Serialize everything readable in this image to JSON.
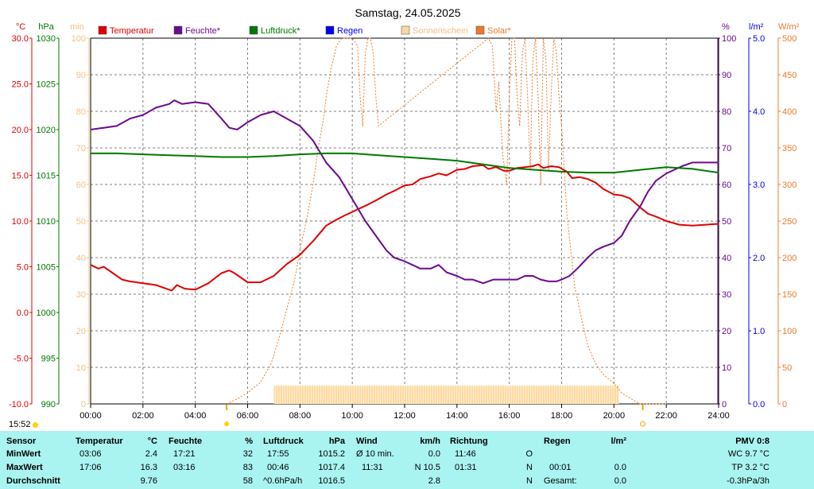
{
  "title": "Samstag, 24.05.2025",
  "colors": {
    "temperature": "#e00000",
    "humidity": "#6b0a8f",
    "pressure": "#007800",
    "rain": "#0000f0",
    "sunshine": "#ffd9a0",
    "solar": "#f07828",
    "grid": "#808080",
    "table_bg": "#a9f4f0"
  },
  "legend": [
    {
      "label": "Temperatur",
      "color": "#e00000",
      "text_color": "#e00000"
    },
    {
      "label": "Feuchte*",
      "color": "#6b0a8f",
      "text_color": "#6b0a8f"
    },
    {
      "label": "Luftdruck*",
      "color": "#007800",
      "text_color": "#007800"
    },
    {
      "label": "Regen",
      "color": "#0000f0",
      "text_color": "#0000f0"
    },
    {
      "label": "Sonnenschein",
      "color": "#ffd9a0",
      "text_color": "#f5c080"
    },
    {
      "label": "Solar*",
      "color": "#f07828",
      "text_color": "#f07828"
    }
  ],
  "axes": {
    "temperature": {
      "unit": "°C",
      "min": -10,
      "max": 30,
      "ticks": [
        "30.0",
        "25.0",
        "20.0",
        "15.0",
        "10.0",
        "5.0",
        "0.0",
        "-5.0",
        "-10.0"
      ]
    },
    "pressure": {
      "unit": "hPa",
      "min": 990,
      "max": 1030,
      "ticks": [
        "1030",
        "1025",
        "1020",
        "1015",
        "1010",
        "1005",
        "1000",
        "995",
        "990"
      ]
    },
    "sunshine": {
      "unit": "min",
      "min": 0,
      "max": 100,
      "ticks": [
        "100",
        "90",
        "80",
        "70",
        "60",
        "50",
        "40",
        "30",
        "20",
        "10",
        "0"
      ]
    },
    "humidity": {
      "unit": "%",
      "min": 0,
      "max": 100,
      "ticks": [
        "100",
        "90",
        "80",
        "70",
        "60",
        "50",
        "40",
        "30",
        "20",
        "10",
        "0"
      ]
    },
    "rain": {
      "unit": "l/m²",
      "min": 0,
      "max": 5,
      "ticks": [
        "5.0",
        "4.0",
        "3.0",
        "2.0",
        "1.0",
        "0.0"
      ]
    },
    "solar": {
      "unit": "W/m²",
      "min": 0,
      "max": 500,
      "ticks": [
        "500",
        "450",
        "400",
        "350",
        "300",
        "250",
        "200",
        "150",
        "100",
        "50",
        "0"
      ]
    },
    "time": {
      "ticks": [
        "00:00",
        "02:00",
        "04:00",
        "06:00",
        "08:00",
        "10:00",
        "12:00",
        "14:00",
        "16:00",
        "18:00",
        "20:00",
        "22:00",
        "24:00"
      ]
    }
  },
  "chart_data": {
    "type": "line",
    "title": "Samstag, 24.05.2025",
    "x_unit": "hours",
    "xlim": [
      0,
      24
    ],
    "grid": true,
    "legend_position": "top",
    "sunrise_hour": 5.2,
    "sunset_hour": 21.1,
    "series": [
      {
        "name": "Temperatur",
        "axis": "temperature",
        "x": [
          0,
          0.3,
          0.5,
          1,
          1.2,
          1.5,
          2,
          2.5,
          3,
          3.1,
          3.3,
          3.6,
          4,
          4.5,
          5,
          5.3,
          5.5,
          6,
          6.5,
          7,
          7.5,
          8,
          8.5,
          9,
          9.3,
          9.7,
          10,
          10.3,
          10.6,
          11,
          11.3,
          11.6,
          12,
          12.3,
          12.6,
          13,
          13.3,
          13.6,
          14,
          14.3,
          14.6,
          15,
          15.2,
          15.5,
          15.8,
          16,
          16.3,
          16.6,
          16.9,
          17.1,
          17.3,
          17.6,
          17.9,
          18.2,
          18.4,
          18.7,
          19,
          19.3,
          19.6,
          20,
          20.3,
          20.6,
          21,
          21.3,
          21.6,
          22,
          22.5,
          23,
          23.5,
          24
        ],
        "y": [
          5.2,
          4.8,
          5.0,
          4.0,
          3.6,
          3.4,
          3.2,
          3.0,
          2.5,
          2.4,
          3.0,
          2.6,
          2.5,
          3.2,
          4.3,
          4.6,
          4.3,
          3.3,
          3.3,
          4.0,
          5.3,
          6.3,
          7.8,
          9.5,
          10.0,
          10.6,
          11.0,
          11.4,
          11.8,
          12.4,
          12.9,
          13.3,
          13.9,
          14.0,
          14.6,
          14.9,
          15.2,
          15.0,
          15.6,
          15.7,
          16.0,
          16.1,
          15.7,
          15.9,
          15.5,
          15.5,
          15.8,
          15.9,
          16.0,
          16.2,
          15.8,
          16.0,
          15.9,
          15.4,
          14.7,
          14.8,
          14.6,
          14.2,
          13.5,
          12.9,
          12.8,
          12.5,
          11.5,
          10.8,
          10.5,
          10.0,
          9.6,
          9.5,
          9.6,
          9.7
        ]
      },
      {
        "name": "Feuchte*",
        "axis": "humidity",
        "x": [
          0,
          0.5,
          1,
          1.5,
          2,
          2.5,
          3,
          3.2,
          3.5,
          4,
          4.5,
          5,
          5.3,
          5.6,
          6,
          6.5,
          7,
          7.5,
          8,
          8.5,
          9,
          9.5,
          10,
          10.5,
          11,
          11.3,
          11.6,
          12,
          12.3,
          12.6,
          13,
          13.3,
          13.6,
          14,
          14.3,
          14.6,
          15,
          15.4,
          15.8,
          16,
          16.3,
          16.6,
          16.9,
          17.2,
          17.5,
          17.8,
          18,
          18.3,
          18.6,
          19,
          19.3,
          19.6,
          20,
          20.3,
          20.6,
          21,
          21.3,
          21.6,
          22,
          22.3,
          22.6,
          23,
          23.5,
          24
        ],
        "y": [
          75,
          75.5,
          76,
          78,
          79,
          81,
          82,
          83,
          82,
          82.5,
          82,
          78,
          75.5,
          75,
          77,
          79,
          80,
          78,
          76,
          72,
          66,
          62,
          56,
          50,
          45,
          42,
          40,
          39,
          38,
          37,
          37,
          38,
          36,
          35,
          34,
          34,
          33,
          34,
          34,
          34,
          34,
          35,
          35,
          34,
          33.5,
          33.5,
          34,
          35,
          37,
          40,
          42,
          43,
          44,
          46,
          50,
          54,
          58,
          61,
          63,
          64,
          65,
          66,
          66,
          66
        ]
      },
      {
        "name": "Luftdruck*",
        "axis": "pressure",
        "x": [
          0,
          1,
          2,
          3,
          4,
          5,
          6,
          7,
          8,
          9,
          10,
          11,
          12,
          13,
          14,
          15,
          16,
          17,
          18,
          19,
          20,
          21,
          22,
          23,
          24
        ],
        "y": [
          1017.4,
          1017.4,
          1017.3,
          1017.2,
          1017.1,
          1017.0,
          1017.0,
          1017.1,
          1017.3,
          1017.4,
          1017.4,
          1017.2,
          1017.0,
          1016.8,
          1016.6,
          1016.2,
          1015.8,
          1015.6,
          1015.4,
          1015.3,
          1015.3,
          1015.6,
          1015.9,
          1015.7,
          1015.3
        ]
      },
      {
        "name": "Solar*",
        "axis": "solar",
        "x": [
          5.2,
          5.5,
          6,
          6.5,
          6.9,
          7.2,
          7.5,
          7.8,
          8,
          8.3,
          8.5,
          8.7,
          8.9,
          9,
          9.2,
          9.4,
          9.6,
          9.8,
          10,
          10.2,
          10.3,
          10.4,
          10.5,
          10.6,
          10.7,
          10.8,
          10.9,
          11.0,
          15.2,
          15.35,
          15.5,
          15.6,
          15.75,
          15.9,
          16.0,
          16.1,
          16.2,
          16.3,
          16.4,
          16.5,
          16.6,
          16.7,
          16.8,
          16.9,
          17.0,
          17.1,
          17.2,
          17.3,
          17.4,
          17.5,
          17.6,
          17.7,
          17.8,
          17.9,
          18.0,
          18.2,
          18.5,
          18.8,
          19.0,
          19.3,
          19.6,
          20,
          20.3,
          20.6,
          21,
          21.3,
          21.6,
          22
        ],
        "y": [
          0,
          5,
          15,
          30,
          55,
          90,
          130,
          170,
          210,
          260,
          300,
          350,
          390,
          420,
          460,
          490,
          500,
          500,
          500,
          490,
          420,
          380,
          480,
          500,
          500,
          480,
          420,
          380,
          500,
          490,
          400,
          440,
          340,
          300,
          420,
          500,
          500,
          420,
          380,
          480,
          500,
          420,
          320,
          470,
          500,
          420,
          300,
          500,
          470,
          320,
          420,
          500,
          480,
          420,
          380,
          260,
          160,
          110,
          80,
          55,
          40,
          28,
          15,
          8,
          0,
          0,
          0,
          0
        ]
      },
      {
        "name": "Sonnenschein",
        "axis": "sunshine",
        "x": [
          7.0,
          20.2
        ],
        "y": [
          5,
          5
        ]
      }
    ]
  },
  "clock": "15:52",
  "table": {
    "headers": {
      "sensor": "Sensor",
      "temperature": "Temperatur",
      "temperature_unit": "°C",
      "humidity": "Feuchte",
      "humidity_unit": "%",
      "pressure": "Luftdruck",
      "pressure_unit": "hPa",
      "wind": "Wind",
      "wind_unit": "km/h",
      "direction": "Richtung",
      "rain": "Regen",
      "rain_unit": "l/m²",
      "pmv": "PMV 0:8"
    },
    "rows": [
      {
        "label": "MinWert",
        "t_time": "03:06",
        "t_val": "2.4",
        "h_time": "17:21",
        "h_val": "32",
        "p_time": "17:55",
        "p_val": "1015.2",
        "w_time": "Ø 10 min.",
        "w_val": "0.0",
        "d_time": "11:46",
        "d_val": "O",
        "r_time": "",
        "r_val": "",
        "pmv": "WC 9.7 °C"
      },
      {
        "label": "MaxWert",
        "t_time": "17:06",
        "t_val": "16.3",
        "h_time": "03:16",
        "h_val": "83",
        "p_time": "00:46",
        "p_val": "1017.4",
        "w_time": "11:31",
        "w_val": "N 10.5",
        "d_time": "01:31",
        "d_val": "N",
        "r_time": "00:01",
        "r_val": "0.0",
        "pmv": "TP 3.2 °C"
      },
      {
        "label": "Durchschnitt",
        "t_time": "",
        "t_val": "9.76",
        "h_time": "",
        "h_val": "58",
        "p_time": "^0.6hPa/h",
        "p_val": "1016.5",
        "w_time": "",
        "w_val": "2.8",
        "d_time": "",
        "d_val": "N",
        "r_time": "Gesamt:",
        "r_val": "0.0",
        "pmv": "-0.3hPa/3h"
      }
    ]
  }
}
